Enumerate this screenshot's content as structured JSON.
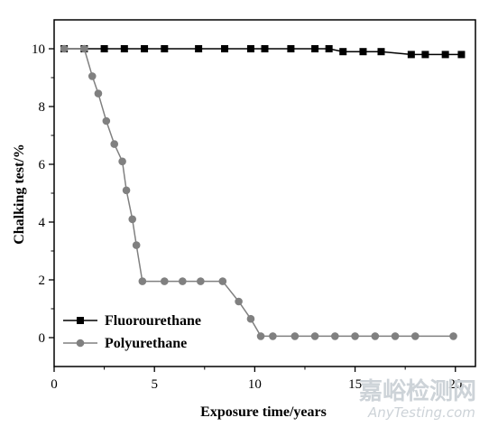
{
  "chart_data": {
    "type": "line",
    "xlabel": "Exposure time/years",
    "ylabel": "Chalking test/%",
    "xlim": [
      0,
      21
    ],
    "ylim": [
      -1,
      11
    ],
    "xticks": [
      0,
      5,
      10,
      15,
      20
    ],
    "yticks": [
      0,
      2,
      4,
      6,
      8,
      10
    ],
    "grid": false,
    "legend_position": "bottom-left",
    "series": [
      {
        "name": "Fluorourethane",
        "color": "#000000",
        "marker": "square",
        "x": [
          0.5,
          1.5,
          2.5,
          3.5,
          4.5,
          5.5,
          7.2,
          8.5,
          9.8,
          10.5,
          11.8,
          13.0,
          13.7,
          14.4,
          15.4,
          16.3,
          17.8,
          18.5,
          19.5,
          20.3
        ],
        "y": [
          10,
          10,
          10,
          10,
          10,
          10,
          10,
          10,
          10,
          10,
          10,
          10,
          10,
          9.9,
          9.9,
          9.9,
          9.8,
          9.8,
          9.8,
          9.8
        ]
      },
      {
        "name": "Polyurethane",
        "color": "#808080",
        "marker": "circle",
        "x": [
          0.5,
          1.5,
          1.9,
          2.2,
          2.6,
          3.0,
          3.4,
          3.6,
          3.9,
          4.1,
          4.4,
          5.5,
          6.4,
          7.3,
          8.4,
          9.2,
          9.8,
          10.3,
          10.9,
          12.0,
          13.0,
          14.0,
          15.0,
          16.0,
          17.0,
          18.0,
          19.9
        ],
        "y": [
          10,
          10,
          9.05,
          8.45,
          7.5,
          6.7,
          6.1,
          5.1,
          4.1,
          3.2,
          1.95,
          1.95,
          1.95,
          1.95,
          1.95,
          1.25,
          0.65,
          0.05,
          0.05,
          0.05,
          0.05,
          0.05,
          0.05,
          0.05,
          0.05,
          0.05,
          0.05
        ]
      }
    ]
  },
  "watermark": {
    "cn": "嘉峪检测网",
    "en": "AnyTesting.com"
  }
}
